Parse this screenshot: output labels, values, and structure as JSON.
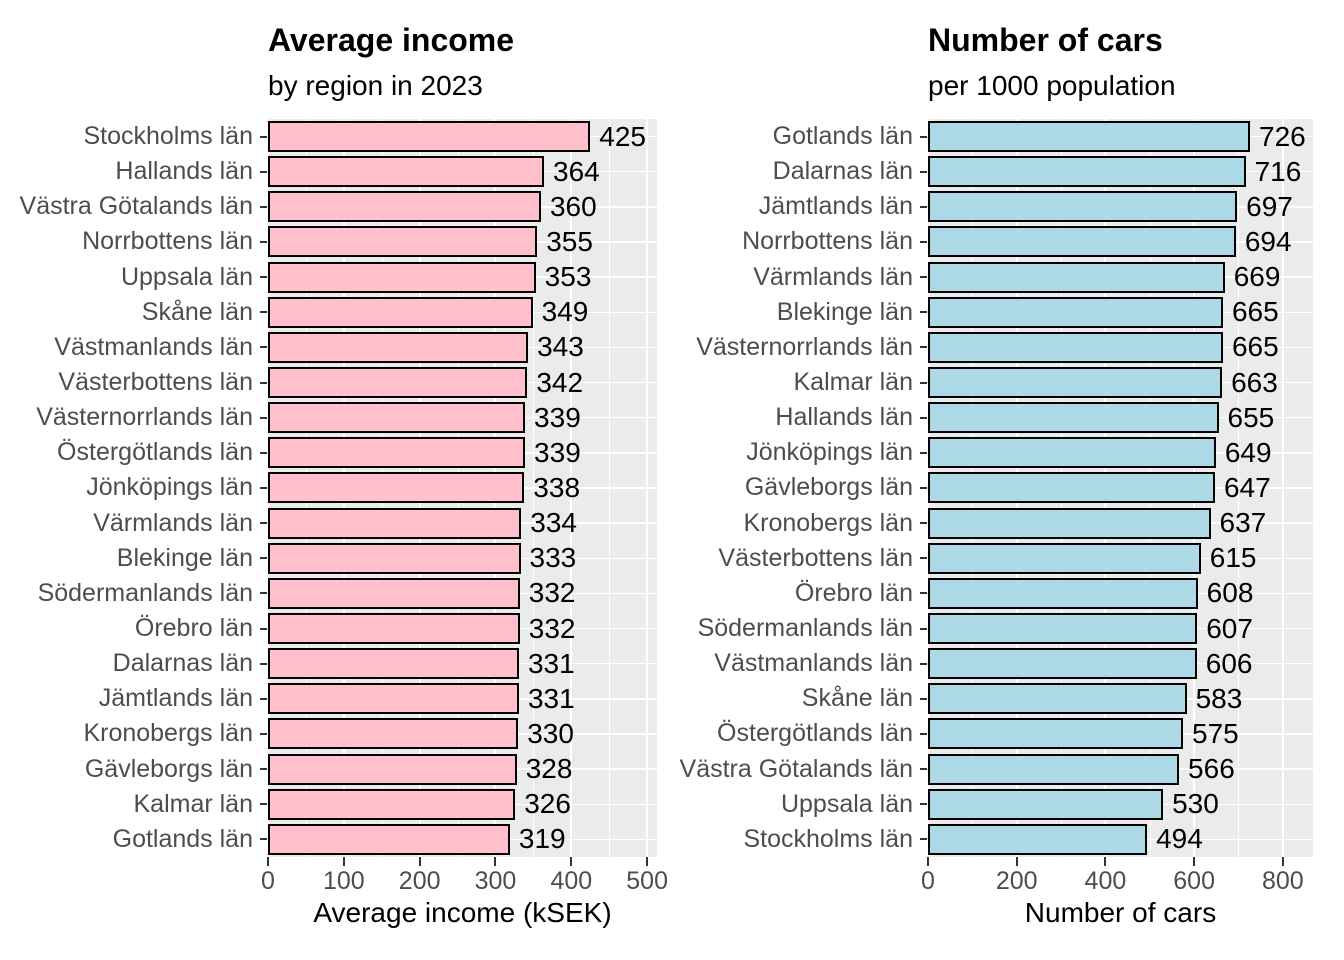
{
  "chart_data": [
    {
      "type": "bar",
      "orientation": "horizontal",
      "title": "Average income",
      "subtitle": "by region in 2023",
      "xlabel": "Average income (kSEK)",
      "categories": [
        "Stockholms län",
        "Hallands län",
        "Västra Götalands län",
        "Norrbottens län",
        "Uppsala län",
        "Skåne län",
        "Västmanlands län",
        "Västerbottens län",
        "Västernorrlands län",
        "Östergötlands län",
        "Jönköpings län",
        "Värmlands län",
        "Blekinge län",
        "Södermanlands län",
        "Örebro län",
        "Dalarnas län",
        "Jämtlands län",
        "Kronobergs län",
        "Gävleborgs län",
        "Kalmar län",
        "Gotlands län"
      ],
      "values": [
        425,
        364,
        360,
        355,
        353,
        349,
        343,
        342,
        339,
        339,
        338,
        334,
        333,
        332,
        332,
        331,
        331,
        330,
        328,
        326,
        319
      ],
      "xlim": [
        0,
        513
      ],
      "x_major_ticks": [
        0,
        100,
        200,
        300,
        400,
        500
      ],
      "x_minor_ticks": [
        50,
        150,
        250,
        350,
        450
      ],
      "grid": "on",
      "legend": "none",
      "bar_fill": "#FFC0CB",
      "bar_border": "#000000",
      "panel_bg": "#EBEBEB",
      "grid_color": "#FFFFFF",
      "axis_text_color": "#4D4D4D",
      "value_label_color": "#000000"
    },
    {
      "type": "bar",
      "orientation": "horizontal",
      "title": "Number of cars",
      "subtitle": "per 1000 population",
      "xlabel": "Number of cars",
      "categories": [
        "Gotlands län",
        "Dalarnas län",
        "Jämtlands län",
        "Norrbottens län",
        "Värmlands län",
        "Blekinge län",
        "Västernorrlands län",
        "Kalmar län",
        "Hallands län",
        "Jönköpings län",
        "Gävleborgs län",
        "Kronobergs län",
        "Västerbottens län",
        "Örebro län",
        "Södermanlands län",
        "Västmanlands län",
        "Skåne län",
        "Östergötlands län",
        "Västra Götalands län",
        "Uppsala län",
        "Stockholms län"
      ],
      "values": [
        726,
        716,
        697,
        694,
        669,
        665,
        665,
        663,
        655,
        649,
        647,
        637,
        615,
        608,
        607,
        606,
        583,
        575,
        566,
        530,
        494
      ],
      "xlim": [
        0,
        868
      ],
      "x_major_ticks": [
        0,
        200,
        400,
        600,
        800
      ],
      "x_minor_ticks": [
        100,
        300,
        500,
        700
      ],
      "grid": "on",
      "legend": "none",
      "bar_fill": "#ADD8E6",
      "bar_border": "#000000",
      "panel_bg": "#EBEBEB",
      "grid_color": "#FFFFFF",
      "axis_text_color": "#4D4D4D",
      "value_label_color": "#000000"
    }
  ]
}
